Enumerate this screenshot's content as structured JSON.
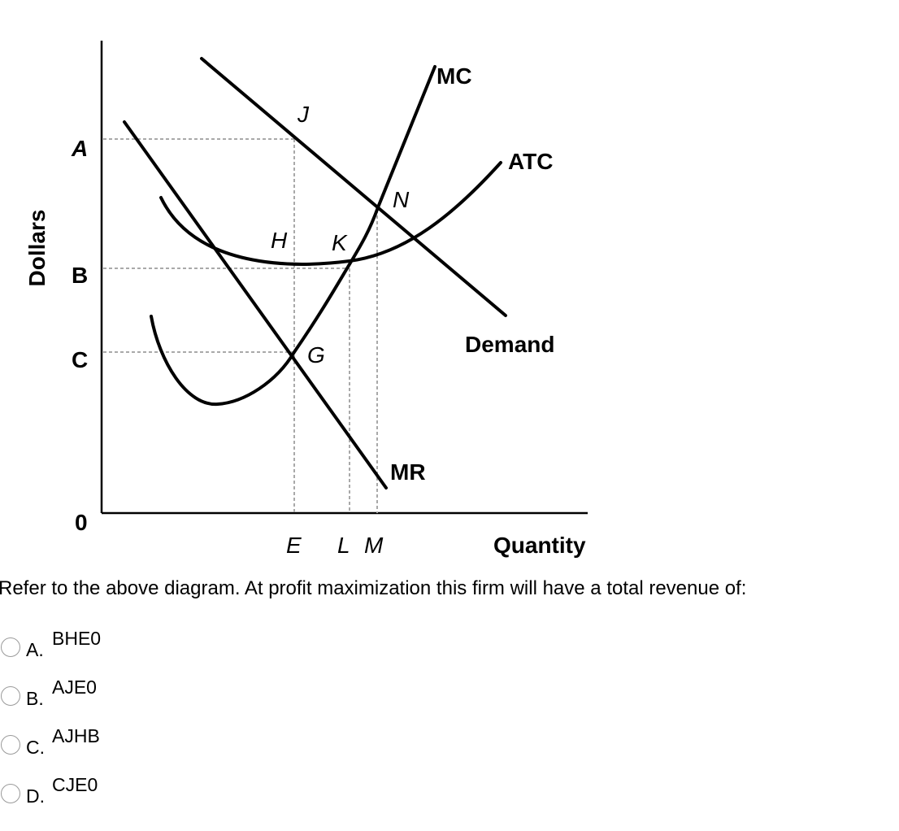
{
  "diagram": {
    "y_axis_label": "Dollars",
    "x_axis_label": "Quantity",
    "price_labels": {
      "a": "A",
      "b": "B",
      "c": "C",
      "origin": "0"
    },
    "quantity_labels": {
      "e": "E",
      "l": "L",
      "m": "M"
    },
    "point_labels": {
      "j": "J",
      "n": "N",
      "h": "H",
      "k": "K",
      "g": "G"
    },
    "curve_labels": {
      "mc": "MC",
      "atc": "ATC",
      "demand": "Demand",
      "mr": "MR"
    }
  },
  "question": {
    "text": "Refer to the above diagram. At profit maximization this firm will have a total revenue of:",
    "options": [
      {
        "letter": "A.",
        "text": "BHE0",
        "selected": false
      },
      {
        "letter": "B.",
        "text": "AJE0",
        "selected": false
      },
      {
        "letter": "C.",
        "text": "AJHB",
        "selected": false
      },
      {
        "letter": "D.",
        "text": "CJE0",
        "selected": false
      }
    ]
  }
}
